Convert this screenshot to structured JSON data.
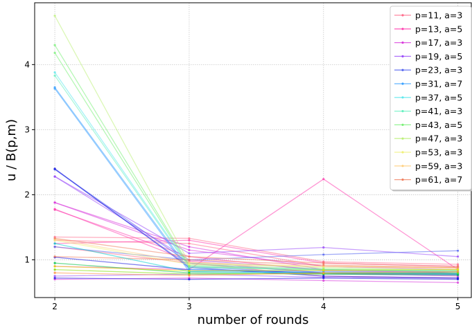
{
  "chart_data": {
    "type": "line",
    "title": "",
    "xlabel": "number of rounds",
    "ylabel": "u / B(p,m)",
    "x": [
      2,
      3,
      4,
      5
    ],
    "xlim": [
      1.85,
      5.1
    ],
    "ylim": [
      0.42,
      4.95
    ],
    "xticks": [
      "2",
      "3",
      "4",
      "5"
    ],
    "yticks": [
      "1",
      "2",
      "3",
      "4"
    ],
    "grid": true,
    "legend_position": "top-right",
    "legend": [
      {
        "label": "p=11, a=3",
        "color": "#ff6a8a"
      },
      {
        "label": "p=13, a=5",
        "color": "#ff3fb0"
      },
      {
        "label": "p=17, a=3",
        "color": "#d93bdc"
      },
      {
        "label": "p=19, a=5",
        "color": "#9b4dfa"
      },
      {
        "label": "p=23, a=3",
        "color": "#5566f0"
      },
      {
        "label": "p=31, a=7",
        "color": "#3aa0ff"
      },
      {
        "label": "p=37, a=5",
        "color": "#5fe8ee"
      },
      {
        "label": "p=41, a=3",
        "color": "#66f0c0"
      },
      {
        "label": "p=43, a=5",
        "color": "#7cf07a"
      },
      {
        "label": "p=47, a=3",
        "color": "#bdf07a"
      },
      {
        "label": "p=53, a=3",
        "color": "#f0f07a"
      },
      {
        "label": "p=59, a=3",
        "color": "#ffd080"
      },
      {
        "label": "p=61, a=7",
        "color": "#f08060"
      }
    ],
    "series": [
      {
        "color": "#ff6a8a",
        "values": [
          1.35,
          1.33,
          0.97,
          0.93
        ]
      },
      {
        "color": "#ff6a8a",
        "values": [
          1.3,
          1.25,
          0.9,
          0.88
        ]
      },
      {
        "color": "#ff6a8a",
        "values": [
          1.2,
          0.95,
          0.75,
          0.72
        ]
      },
      {
        "color": "#ff3fb0",
        "values": [
          1.77,
          1.05,
          0.83,
          0.8
        ]
      },
      {
        "color": "#ff3fb0",
        "values": [
          1.78,
          0.98,
          0.8,
          0.75
        ]
      },
      {
        "color": "#ff3fb0",
        "values": [
          1.25,
          1.3,
          0.95,
          0.9
        ]
      },
      {
        "color": "#ff3fb0",
        "values": [
          0.9,
          0.85,
          2.24,
          0.85
        ]
      },
      {
        "color": "#d93bdc",
        "values": [
          1.88,
          1.2,
          0.85,
          0.8
        ]
      },
      {
        "color": "#d93bdc",
        "values": [
          1.88,
          1.15,
          0.9,
          0.85
        ]
      },
      {
        "color": "#d93bdc",
        "values": [
          0.7,
          0.72,
          0.68,
          0.65
        ]
      },
      {
        "color": "#9b4dfa",
        "values": [
          2.28,
          1.1,
          1.19,
          1.05
        ]
      },
      {
        "color": "#9b4dfa",
        "values": [
          2.28,
          1.0,
          0.85,
          0.82
        ]
      },
      {
        "color": "#9b4dfa",
        "values": [
          0.75,
          0.78,
          0.73,
          0.72
        ]
      },
      {
        "color": "#5566f0",
        "values": [
          2.39,
          0.95,
          0.8,
          0.78
        ]
      },
      {
        "color": "#5566f0",
        "values": [
          2.39,
          0.9,
          0.78,
          0.76
        ]
      },
      {
        "color": "#5566f0",
        "values": [
          1.2,
          1.0,
          1.08,
          1.14
        ]
      },
      {
        "color": "#1818e0",
        "values": [
          2.4,
          0.88,
          0.75,
          0.72
        ]
      },
      {
        "color": "#1818e0",
        "values": [
          1.04,
          0.85,
          0.8,
          0.78
        ]
      },
      {
        "color": "#1818e0",
        "values": [
          0.72,
          0.7,
          0.72,
          0.7
        ]
      },
      {
        "color": "#3aa0ff",
        "values": [
          3.65,
          0.85,
          0.82,
          0.8
        ]
      },
      {
        "color": "#3aa0ff",
        "values": [
          3.63,
          0.82,
          0.8,
          0.78
        ]
      },
      {
        "color": "#5fe8ee",
        "values": [
          3.88,
          0.9,
          0.85,
          0.83
        ]
      },
      {
        "color": "#66f0c0",
        "values": [
          3.83,
          0.88,
          0.85,
          0.82
        ]
      },
      {
        "color": "#7cf07a",
        "values": [
          4.3,
          0.92,
          0.86,
          0.84
        ]
      },
      {
        "color": "#7cf07a",
        "values": [
          4.18,
          0.9,
          0.84,
          0.82
        ]
      },
      {
        "color": "#bdf07a",
        "values": [
          4.75,
          0.95,
          0.88,
          0.85
        ]
      },
      {
        "color": "#f0f07a",
        "values": [
          1.3,
          0.93,
          0.9,
          0.88
        ]
      },
      {
        "color": "#ffd080",
        "values": [
          1.32,
          0.96,
          0.9,
          0.87
        ]
      },
      {
        "color": "#f08060",
        "values": [
          1.33,
          1.05,
          0.95,
          0.9
        ]
      },
      {
        "color": "#f08060",
        "values": [
          1.05,
          1.0,
          0.92,
          0.88
        ]
      },
      {
        "color": "#00d0d0",
        "values": [
          1.25,
          0.82,
          0.8,
          0.79
        ]
      },
      {
        "color": "#00c040",
        "values": [
          0.95,
          0.8,
          0.78,
          0.77
        ]
      },
      {
        "color": "#80e000",
        "values": [
          0.85,
          0.78,
          0.79,
          0.8
        ]
      },
      {
        "color": "#e0e000",
        "values": [
          0.9,
          0.83,
          0.84,
          0.85
        ]
      },
      {
        "color": "#ff9040",
        "values": [
          0.8,
          0.76,
          0.8,
          0.82
        ]
      }
    ]
  }
}
